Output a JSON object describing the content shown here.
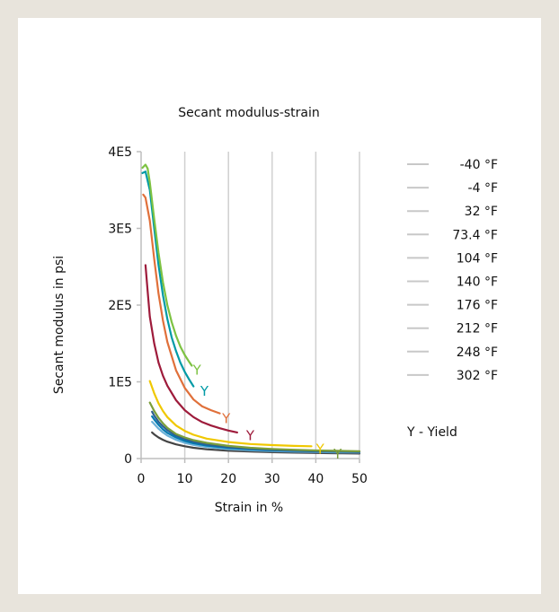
{
  "chart_data": {
    "type": "line",
    "title": "Secant modulus-strain",
    "xlabel": "Strain in %",
    "ylabel": "Secant modulus in psi",
    "xlim": [
      0,
      50
    ],
    "ylim": [
      0,
      400000
    ],
    "xticks": [
      "0",
      "10",
      "20",
      "30",
      "40",
      "50"
    ],
    "yticks": [
      "0",
      "1E5",
      "2E5",
      "3E5",
      "4E5"
    ],
    "grid": "vertical",
    "legend_position": "right",
    "legend_note": "Y - Yield",
    "yield_marker": "Y",
    "series": [
      {
        "name": "-40 °F",
        "color": "#7dc242",
        "x": [
          0.3,
          1,
          1.5,
          2,
          3,
          4,
          5,
          6,
          7,
          8,
          9,
          10,
          11,
          11.6
        ],
        "y": [
          379000,
          383000,
          378000,
          360000,
          312000,
          268000,
          230000,
          200000,
          178000,
          160000,
          146000,
          135000,
          126000,
          121000
        ],
        "yield": [
          12.8,
          115000
        ]
      },
      {
        "name": "-4 °F",
        "color": "#009aa6",
        "x": [
          0.3,
          1,
          2,
          3,
          4,
          5,
          6,
          7,
          8,
          9,
          10,
          11,
          12
        ],
        "y": [
          372000,
          374000,
          350000,
          300000,
          252000,
          213000,
          182000,
          158000,
          140000,
          125000,
          113000,
          103000,
          94000
        ],
        "yield": [
          14.5,
          88000
        ]
      },
      {
        "name": "32 °F",
        "color": "#e0703a",
        "x": [
          0.5,
          1,
          2,
          3,
          4,
          5,
          6,
          8,
          10,
          12,
          14,
          16,
          18
        ],
        "y": [
          344000,
          340000,
          310000,
          260000,
          215000,
          180000,
          152000,
          115000,
          92000,
          77000,
          68000,
          63000,
          59000
        ],
        "yield": [
          19.5,
          52000
        ]
      },
      {
        "name": "73.4 °F",
        "color": "#9e1b3b",
        "x": [
          1,
          1.5,
          2,
          3,
          4,
          5,
          6,
          8,
          10,
          12,
          14,
          16,
          18,
          20,
          22
        ],
        "y": [
          252000,
          218000,
          185000,
          150000,
          125000,
          108000,
          95000,
          76000,
          63000,
          54000,
          47500,
          43000,
          39500,
          36500,
          34000
        ],
        "yield": [
          25,
          30000
        ]
      },
      {
        "name": "104 °F",
        "color": "#f0c800",
        "x": [
          2,
          3,
          4,
          5,
          6,
          8,
          10,
          12,
          15,
          20,
          25,
          30,
          35,
          39
        ],
        "y": [
          101000,
          85000,
          72000,
          62000,
          54000,
          43000,
          36000,
          31000,
          26000,
          21500,
          19000,
          17500,
          16500,
          16000
        ],
        "yield": [
          41,
          12000
        ]
      },
      {
        "name": "140 °F",
        "color": "#7b9e3a",
        "x": [
          2,
          3,
          4,
          5,
          6,
          8,
          10,
          12,
          15,
          20,
          25,
          30,
          35,
          40,
          45,
          50
        ],
        "y": [
          73000,
          62000,
          53000,
          46000,
          40000,
          32000,
          27500,
          24000,
          20500,
          16500,
          14000,
          12500,
          11500,
          10500,
          10000,
          9500
        ],
        "yield": [
          45,
          6000
        ]
      },
      {
        "name": "176 °F",
        "color": "#2f5f8f",
        "x": [
          2.5,
          3,
          4,
          5,
          6,
          8,
          10,
          12,
          15,
          20,
          25,
          30,
          35,
          40,
          45,
          50
        ],
        "y": [
          61000,
          56000,
          48000,
          42000,
          37000,
          30000,
          25500,
          22000,
          18500,
          15000,
          13000,
          11500,
          10500,
          9800,
          9200,
          8800
        ]
      },
      {
        "name": "212 °F",
        "color": "#0079b0",
        "x": [
          2.5,
          3,
          4,
          5,
          6,
          8,
          10,
          12,
          15,
          20,
          25,
          30,
          35,
          40,
          45,
          50
        ],
        "y": [
          55000,
          51000,
          44000,
          38000,
          33500,
          27500,
          23000,
          20000,
          17000,
          13800,
          12000,
          10800,
          10000,
          9400,
          9000,
          8600
        ]
      },
      {
        "name": "248 °F",
        "color": "#6ab0d8",
        "x": [
          2.5,
          3,
          4,
          5,
          6,
          8,
          10,
          12,
          15,
          20,
          25,
          30,
          35,
          40,
          45,
          50
        ],
        "y": [
          48000,
          45000,
          39000,
          34000,
          30000,
          24500,
          20500,
          17800,
          15000,
          12300,
          10800,
          9800,
          9000,
          8500,
          8100,
          7800
        ]
      },
      {
        "name": "302 °F",
        "color": "#444444",
        "x": [
          2.5,
          3,
          4,
          5,
          6,
          8,
          10,
          12,
          15,
          20,
          25,
          30,
          35,
          40,
          45,
          50
        ],
        "y": [
          34000,
          31500,
          27500,
          24500,
          22000,
          18500,
          16000,
          14000,
          12000,
          10200,
          9100,
          8300,
          7700,
          7200,
          6900,
          6600
        ]
      }
    ]
  }
}
